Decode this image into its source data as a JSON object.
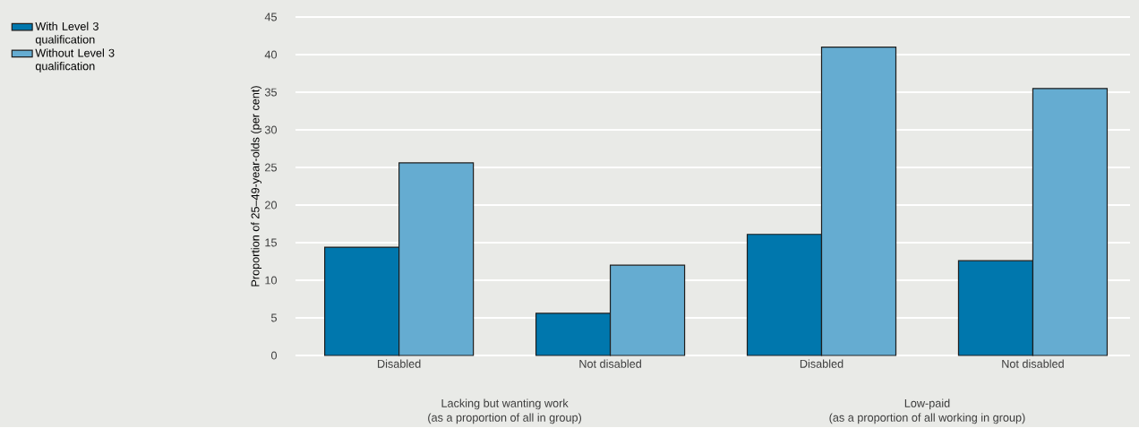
{
  "chart_data": {
    "type": "bar",
    "ylabel": "Proportion of 25–49-year-olds (per cent)",
    "categories": [
      "Disabled",
      "Not disabled",
      "Disabled",
      "Not disabled"
    ],
    "series": [
      {
        "name": "With Level 3 qualification",
        "color": "#0077ad",
        "values": [
          14.4,
          5.6,
          16.1,
          12.6
        ]
      },
      {
        "name": "Without Level 3 qualification",
        "color": "#65acd1",
        "values": [
          25.6,
          12.0,
          41.0,
          35.5
        ]
      }
    ],
    "ylim": [
      0,
      45
    ],
    "yticks": [
      0,
      5,
      10,
      15,
      20,
      25,
      30,
      35,
      40,
      45
    ],
    "grid": "y",
    "legend": "top left",
    "annotations": [
      "Lacking but wanting work",
      "(as a proportion of all in group)",
      "Low-paid",
      "(as a proportion of all working in group)"
    ]
  }
}
